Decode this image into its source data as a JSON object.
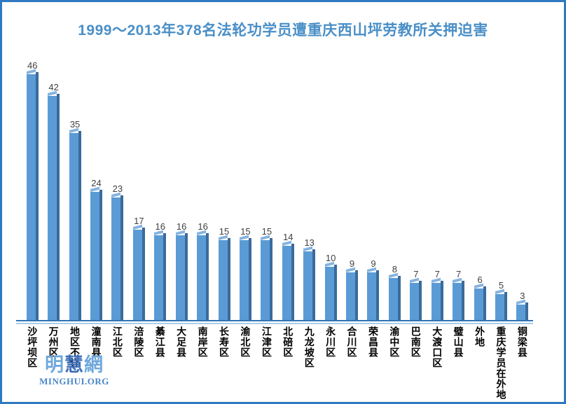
{
  "chart_data": {
    "type": "bar",
    "title": "1999～2013年378名法轮功学员遭重庆西山坪劳教所关押迫害",
    "categories": [
      "沙坪坝区",
      "万州区",
      "地区不详",
      "潼南县",
      "江北区",
      "涪陵区",
      "綦江县",
      "大足县",
      "南岸区",
      "长寿区",
      "渝北区",
      "江津区",
      "北碚区",
      "九龙坡区",
      "永川区",
      "合川区",
      "荣昌县",
      "渝中区",
      "巴南区",
      "大渡口区",
      "璧山县",
      "外地",
      "重庆学员在外地",
      "铜梁县"
    ],
    "values": [
      46,
      42,
      35,
      24,
      23,
      17,
      16,
      16,
      16,
      15,
      15,
      15,
      14,
      13,
      10,
      9,
      9,
      8,
      7,
      7,
      7,
      6,
      5,
      3
    ],
    "total": 378,
    "xlabel": "",
    "ylabel": "",
    "ylim": [
      0,
      48
    ],
    "grid": false,
    "axes_visible": false,
    "data_labels": true,
    "category_label_orientation": "vertical",
    "legend": "none"
  },
  "logo": {
    "char1": "明",
    "char2": "慧",
    "char3": "網",
    "url": "MINGHUI.ORG"
  },
  "colors": {
    "border_blue": "#2e79c1",
    "title_blue": "#4a8fc7",
    "bar_main": "#5b9bd5",
    "bar_side": "#3a6b9c",
    "bar_top": "#85b3df",
    "axis_dark": "#2e75b6",
    "axis_light": "#a9ccea",
    "value_text": "#404040",
    "logo_light": "#6fa8dc",
    "logo_dark": "#3d6eb5",
    "logo_url_blue": "#4a86c8"
  }
}
